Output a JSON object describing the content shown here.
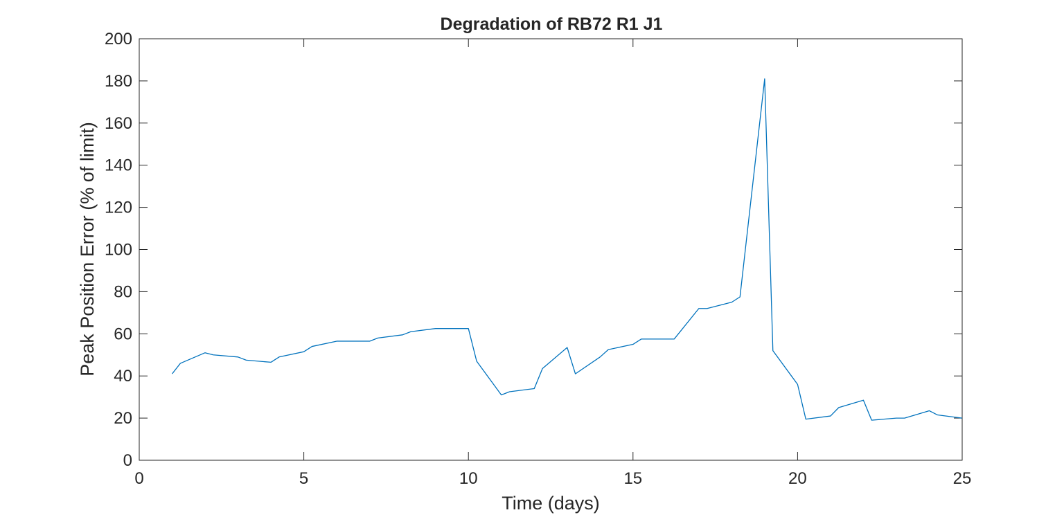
{
  "chart_data": {
    "type": "line",
    "title": "Degradation of RB72 R1 J1",
    "xlabel": "Time (days)",
    "ylabel": "Peak Position Error (% of limit)",
    "xlim": [
      0,
      25
    ],
    "ylim": [
      0,
      200
    ],
    "xticks": [
      "0",
      "5",
      "10",
      "15",
      "20",
      "25"
    ],
    "yticks": [
      "0",
      "20",
      "40",
      "60",
      "80",
      "100",
      "120",
      "140",
      "160",
      "180",
      "200"
    ],
    "grid": false,
    "line_color": "#0072bd",
    "series": [
      {
        "x": [
          1,
          1.25,
          2,
          2.25,
          3,
          3.25,
          4,
          4.25,
          5,
          5.25,
          6,
          6.25,
          7,
          7.25,
          8,
          8.25,
          9,
          9.25,
          10,
          10.25,
          11,
          11.25,
          12,
          12.25,
          13,
          13.25,
          14,
          14.25,
          15,
          15.25,
          16,
          16.25,
          17,
          17.25,
          18,
          18.25,
          19,
          19.25,
          20,
          20.25,
          21,
          21.25,
          22,
          22.25,
          23,
          23.25,
          24,
          24.25,
          25
        ],
        "y": [
          41,
          46,
          51,
          50,
          49,
          47.5,
          46.5,
          49,
          51.5,
          54,
          56.5,
          56.5,
          56.5,
          58,
          59.5,
          61,
          62.5,
          62.5,
          62.5,
          47,
          31,
          32.5,
          34,
          43.5,
          53.5,
          41,
          49,
          52.5,
          55,
          57.5,
          57.5,
          57.5,
          72,
          72,
          75,
          77.5,
          181,
          52,
          36,
          19.5,
          21,
          25,
          28.5,
          19,
          20,
          20,
          23.5,
          21.5,
          20
        ]
      }
    ]
  }
}
